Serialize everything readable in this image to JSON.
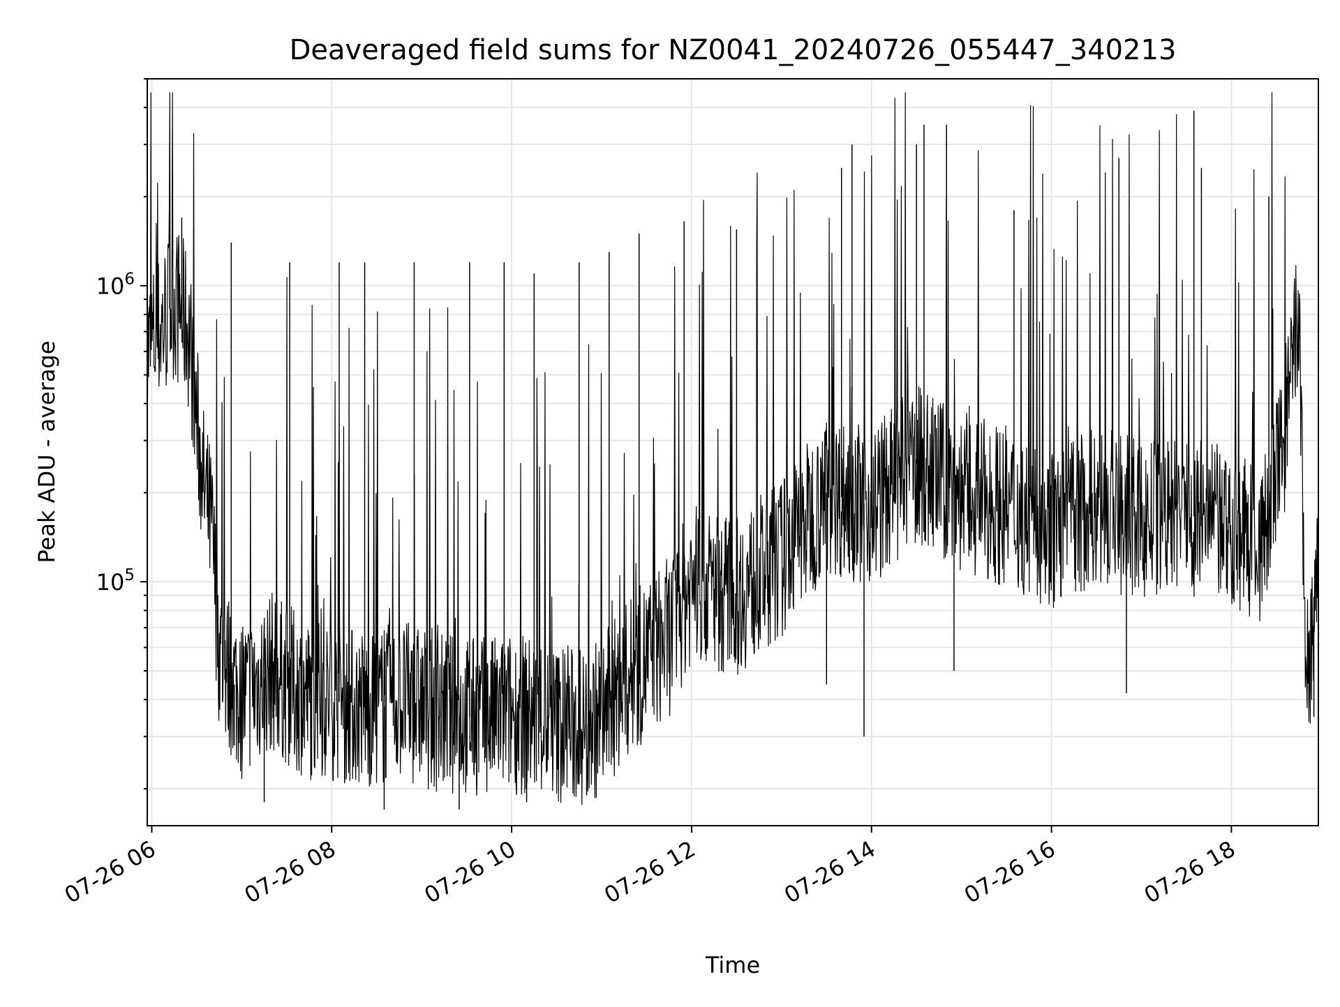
{
  "chart_data": {
    "type": "line",
    "title": "Deaveraged field sums for NZ0041_20240726_055447_340213",
    "xlabel": "Time",
    "ylabel": "Peak ADU - average",
    "x_range": [
      "2024-07-26 05:57",
      "2024-07-26 18:58"
    ],
    "ylim": [
      15000,
      5000000
    ],
    "y_scale": "log",
    "x_ticks": [
      "07-26 06",
      "07-26 08",
      "07-26 10",
      "07-26 12",
      "07-26 14",
      "07-26 16",
      "07-26 18"
    ],
    "y_ticks": [
      {
        "base": "10",
        "exp": "5",
        "value": 100000
      },
      {
        "base": "10",
        "exp": "6",
        "value": 1000000
      }
    ],
    "grid": true,
    "line_color": "#000000",
    "grid_color": "#e6e6e6",
    "series": [
      {
        "x": [
          "2024-07-26 05:57",
          "2024-07-26 06:05",
          "2024-07-26 06:15",
          "2024-07-26 06:25",
          "2024-07-26 06:30",
          "2024-07-26 06:35",
          "2024-07-26 06:40",
          "2024-07-26 06:45",
          "2024-07-26 06:50",
          "2024-07-26 06:55",
          "2024-07-26 07:00",
          "2024-07-26 07:10",
          "2024-07-26 07:20",
          "2024-07-26 07:30",
          "2024-07-26 07:45",
          "2024-07-26 08:00",
          "2024-07-26 08:15",
          "2024-07-26 08:30",
          "2024-07-26 08:45",
          "2024-07-26 09:00",
          "2024-07-26 09:15",
          "2024-07-26 09:30",
          "2024-07-26 09:45",
          "2024-07-26 10:00",
          "2024-07-26 10:15",
          "2024-07-26 10:30",
          "2024-07-26 10:45",
          "2024-07-26 11:00",
          "2024-07-26 11:15",
          "2024-07-26 11:30",
          "2024-07-26 11:45",
          "2024-07-26 11:50",
          "2024-07-26 12:00",
          "2024-07-26 12:30",
          "2024-07-26 13:00",
          "2024-07-26 13:30",
          "2024-07-26 14:00",
          "2024-07-26 14:30",
          "2024-07-26 15:00",
          "2024-07-26 15:30",
          "2024-07-26 16:00",
          "2024-07-26 16:30",
          "2024-07-26 17:00",
          "2024-07-26 17:30",
          "2024-07-26 18:00",
          "2024-07-26 18:20",
          "2024-07-26 18:35",
          "2024-07-26 18:45",
          "2024-07-26 18:50",
          "2024-07-26 18:58"
        ],
        "values": [
          600000,
          700000,
          900000,
          700000,
          350000,
          200000,
          150000,
          60000,
          50000,
          45000,
          40000,
          45000,
          50000,
          45000,
          40000,
          40000,
          38000,
          37000,
          40000,
          38000,
          36000,
          35000,
          35000,
          36000,
          35000,
          33000,
          32000,
          35000,
          45000,
          55000,
          65000,
          75000,
          100000,
          90000,
          120000,
          200000,
          180000,
          250000,
          200000,
          180000,
          150000,
          180000,
          160000,
          170000,
          150000,
          130000,
          300000,
          800000,
          45000,
          100000
        ],
        "spikes": [
          {
            "x": "2024-07-26 06:12",
            "y": 1750000
          },
          {
            "x": "2024-07-26 06:20",
            "y": 1700000
          },
          {
            "x": "2024-07-26 06:53",
            "y": 1400000
          },
          {
            "x": "2024-07-26 07:32",
            "y": 1200000
          },
          {
            "x": "2024-07-26 08:05",
            "y": 1200000
          },
          {
            "x": "2024-07-26 08:22",
            "y": 1200000
          },
          {
            "x": "2024-07-26 08:55",
            "y": 1200000
          },
          {
            "x": "2024-07-26 09:32",
            "y": 1200000
          },
          {
            "x": "2024-07-26 09:55",
            "y": 1200000
          },
          {
            "x": "2024-07-26 10:15",
            "y": 1100000
          },
          {
            "x": "2024-07-26 10:45",
            "y": 1200000
          },
          {
            "x": "2024-07-26 11:05",
            "y": 1300000
          },
          {
            "x": "2024-07-26 11:25",
            "y": 1500000
          },
          {
            "x": "2024-07-26 11:55",
            "y": 1650000
          },
          {
            "x": "2024-07-26 12:30",
            "y": 1550000
          },
          {
            "x": "2024-07-26 13:40",
            "y": 2500000
          },
          {
            "x": "2024-07-26 13:47",
            "y": 3000000
          },
          {
            "x": "2024-07-26 14:30",
            "y": 3000000
          },
          {
            "x": "2024-07-26 14:35",
            "y": 3500000
          },
          {
            "x": "2024-07-26 14:50",
            "y": 3500000
          },
          {
            "x": "2024-07-26 15:35",
            "y": 1800000
          },
          {
            "x": "2024-07-26 16:45",
            "y": 2700000
          },
          {
            "x": "2024-07-26 17:35",
            "y": 3900000
          },
          {
            "x": "2024-07-26 17:40",
            "y": 2500000
          },
          {
            "x": "2024-07-26 18:25",
            "y": 2000000
          }
        ],
        "dips": [
          {
            "x": "2024-07-26 06:55",
            "y": 28000
          },
          {
            "x": "2024-07-26 07:15",
            "y": 18000
          },
          {
            "x": "2024-07-26 08:35",
            "y": 17000
          },
          {
            "x": "2024-07-26 09:25",
            "y": 17000
          },
          {
            "x": "2024-07-26 10:10",
            "y": 18000
          },
          {
            "x": "2024-07-26 10:50",
            "y": 19000
          },
          {
            "x": "2024-07-26 12:20",
            "y": 50000
          },
          {
            "x": "2024-07-26 13:30",
            "y": 45000
          },
          {
            "x": "2024-07-26 13:55",
            "y": 30000
          },
          {
            "x": "2024-07-26 14:55",
            "y": 50000
          },
          {
            "x": "2024-07-26 16:50",
            "y": 42000
          },
          {
            "x": "2024-07-26 18:55",
            "y": 35000
          }
        ]
      }
    ]
  }
}
